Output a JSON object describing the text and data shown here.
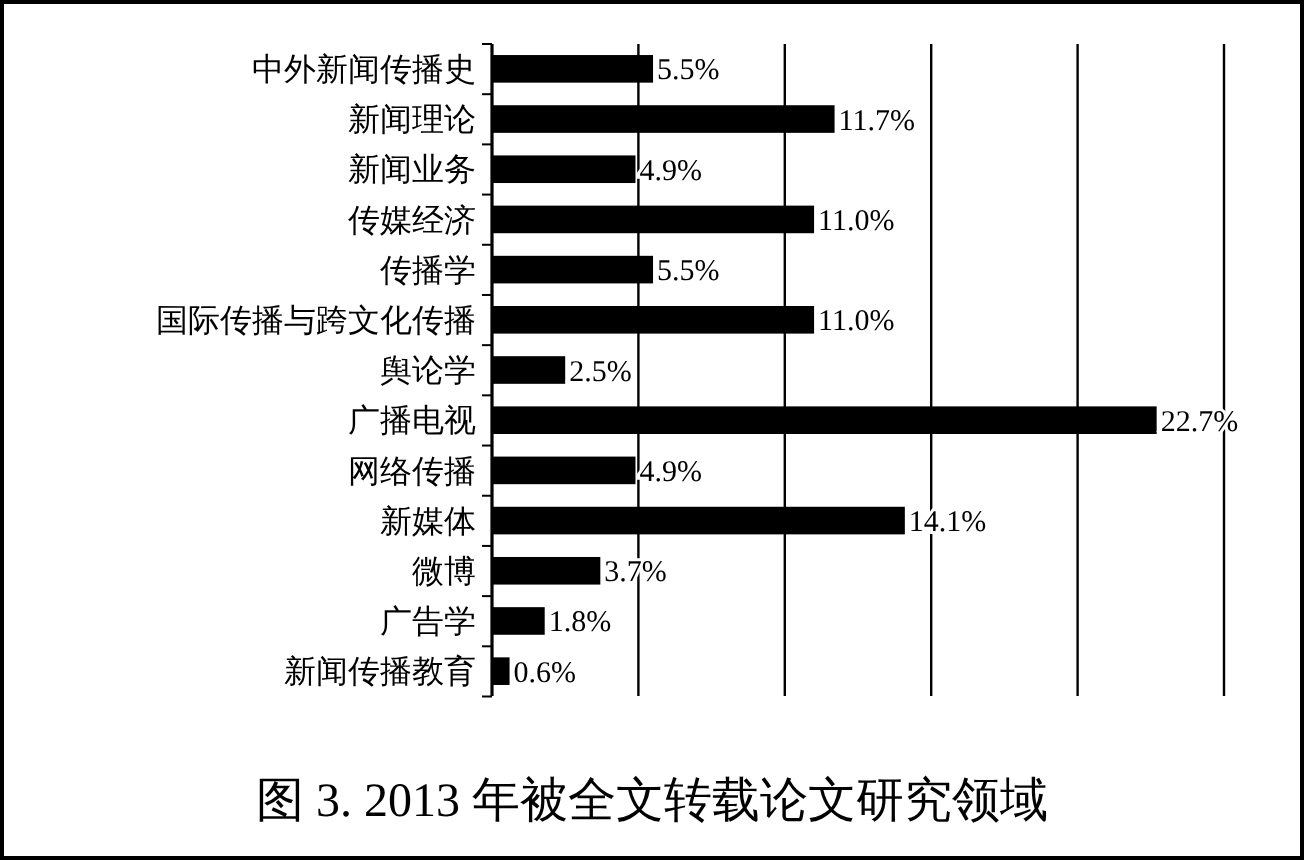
{
  "chart_data": {
    "type": "bar",
    "orientation": "horizontal",
    "title": "图 3. 2013 年被全文转载论文研究领域",
    "categories": [
      "中外新闻传播史",
      "新闻理论",
      "新闻业务",
      "传媒经济",
      "传播学",
      "国际传播与跨文化传播",
      "舆论学",
      "广播电视",
      "网络传播",
      "新媒体",
      "微博",
      "广告学",
      "新闻传播教育"
    ],
    "values": [
      5.5,
      11.7,
      4.9,
      11.0,
      5.5,
      11.0,
      2.5,
      22.7,
      4.9,
      14.1,
      3.7,
      1.8,
      0.6
    ],
    "value_labels": [
      "5.5%",
      "11.7%",
      "4.9%",
      "11.0%",
      "5.5%",
      "11.0%",
      "2.5%",
      "22.7%",
      "4.9%",
      "14.1%",
      "3.7%",
      "1.8%",
      "0.6%"
    ],
    "color": "#000000",
    "xlim": [
      0,
      25
    ],
    "xticks": [
      {
        "value": 0,
        "label": null
      },
      {
        "value": 5,
        "label": null
      },
      {
        "value": 10,
        "label": null
      },
      {
        "value": 15,
        "label": null
      },
      {
        "value": 20,
        "label": null
      },
      {
        "value": 25,
        "label": null
      }
    ],
    "grid": "x"
  }
}
